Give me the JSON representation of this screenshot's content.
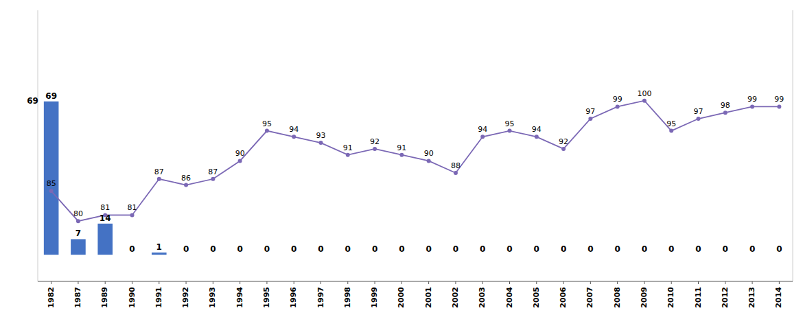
{
  "chart_data": {
    "type": "bar",
    "categories": [
      "1982",
      "1987",
      "1989",
      "1990",
      "1991",
      "1992",
      "1993",
      "1994",
      "1995",
      "1996",
      "1997",
      "1998",
      "1999",
      "2000",
      "2001",
      "2002",
      "2003",
      "2004",
      "2005",
      "2006",
      "2007",
      "2008",
      "2009",
      "2010",
      "2011",
      "2012",
      "2013",
      "2014"
    ],
    "series": [
      {
        "type": "bar",
        "color": "#4472c4",
        "values": [
          69,
          7,
          14,
          0,
          1,
          0,
          0,
          0,
          0,
          0,
          0,
          0,
          0,
          0,
          0,
          0,
          0,
          0,
          0,
          0,
          0,
          0,
          0,
          0,
          0,
          0,
          0,
          0
        ]
      },
      {
        "type": "line",
        "axis": "y2",
        "color": "#7b68b5",
        "marker": "circle",
        "values": [
          85,
          80,
          81,
          81,
          87,
          86,
          87,
          90,
          95,
          94,
          93,
          91,
          92,
          91,
          90,
          88,
          94,
          95,
          94,
          92,
          97,
          99,
          100,
          95,
          97,
          98,
          99,
          99
        ]
      }
    ],
    "ylim": [
      -12,
      110
    ],
    "y2lim": [
      70,
      115
    ],
    "annotations": [
      {
        "text": "69",
        "y": 69
      }
    ],
    "data_labels": true,
    "tick_labels": "x",
    "grid": false
  }
}
